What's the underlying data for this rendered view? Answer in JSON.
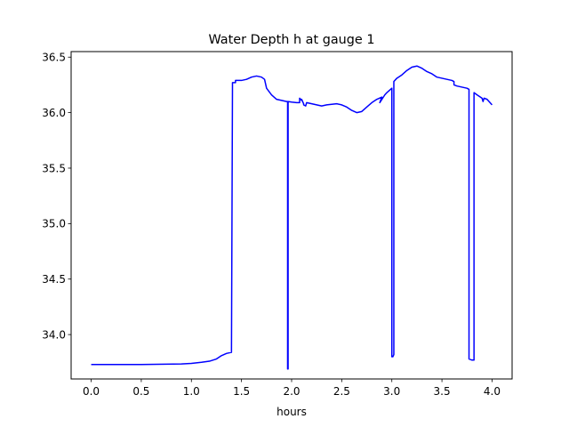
{
  "chart_data": {
    "type": "line",
    "title": "Water Depth h at gauge 1",
    "xlabel": "hours",
    "ylabel": "",
    "xlim": [
      -0.2,
      4.2
    ],
    "ylim": [
      33.6,
      36.55
    ],
    "xticks": [
      0.0,
      0.5,
      1.0,
      1.5,
      2.0,
      2.5,
      3.0,
      3.5,
      4.0
    ],
    "xtick_labels": [
      "0.0",
      "0.5",
      "1.0",
      "1.5",
      "2.0",
      "2.5",
      "3.0",
      "3.5",
      "4.0"
    ],
    "yticks": [
      34.0,
      34.5,
      35.0,
      35.5,
      36.0,
      36.5
    ],
    "ytick_labels": [
      "34.0",
      "34.5",
      "35.0",
      "35.5",
      "36.0",
      "36.5"
    ],
    "grid": false,
    "series": [
      {
        "color": "#0000ff",
        "x": [
          0.0,
          0.5,
          0.9,
          1.0,
          1.1,
          1.18,
          1.25,
          1.3,
          1.35,
          1.4,
          1.41,
          1.41,
          1.44,
          1.44,
          1.5,
          1.55,
          1.6,
          1.65,
          1.7,
          1.73,
          1.75,
          1.8,
          1.85,
          1.9,
          1.95,
          1.96,
          1.96,
          1.965,
          1.965,
          2.0,
          2.05,
          2.08,
          2.08,
          2.1,
          2.1,
          2.12,
          2.12,
          2.14,
          2.15,
          2.2,
          2.3,
          2.35,
          2.4,
          2.45,
          2.5,
          2.55,
          2.6,
          2.65,
          2.7,
          2.75,
          2.8,
          2.85,
          2.9,
          2.88,
          2.93,
          2.95,
          3.0,
          3.0,
          3.01,
          3.02,
          3.02,
          3.05,
          3.1,
          3.15,
          3.2,
          3.25,
          3.3,
          3.35,
          3.4,
          3.45,
          3.5,
          3.55,
          3.6,
          3.62,
          3.62,
          3.65,
          3.7,
          3.75,
          3.77,
          3.77,
          3.8,
          3.8,
          3.82,
          3.82,
          3.85,
          3.9,
          3.91,
          3.92,
          3.95,
          4.0
        ],
        "y": [
          33.73,
          33.73,
          33.735,
          33.74,
          33.75,
          33.76,
          33.78,
          33.81,
          33.83,
          33.84,
          36.24,
          36.27,
          36.27,
          36.29,
          36.29,
          36.3,
          36.32,
          36.33,
          36.32,
          36.3,
          36.22,
          36.16,
          36.12,
          36.11,
          36.1,
          36.1,
          33.69,
          33.69,
          36.1,
          36.095,
          36.09,
          36.09,
          36.13,
          36.11,
          36.12,
          36.08,
          36.07,
          36.06,
          36.09,
          36.08,
          36.06,
          36.07,
          36.075,
          36.08,
          36.07,
          36.05,
          36.02,
          36.0,
          36.01,
          36.05,
          36.09,
          36.12,
          36.14,
          36.09,
          36.16,
          36.18,
          36.22,
          33.8,
          33.8,
          33.82,
          36.28,
          36.31,
          36.34,
          36.38,
          36.41,
          36.42,
          36.4,
          36.37,
          36.35,
          36.32,
          36.31,
          36.3,
          36.29,
          36.28,
          36.25,
          36.24,
          36.23,
          36.22,
          36.21,
          33.78,
          33.77,
          33.77,
          33.77,
          36.18,
          36.16,
          36.13,
          36.1,
          36.13,
          36.12,
          36.07
        ]
      }
    ]
  }
}
